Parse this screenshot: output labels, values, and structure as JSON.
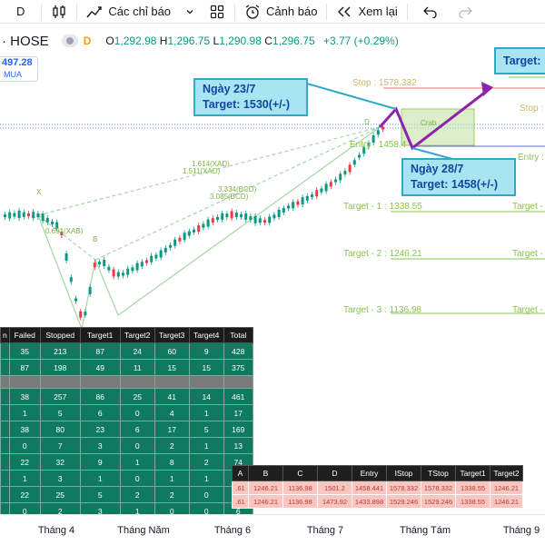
{
  "toolbar": {
    "interval": "D",
    "indicators_label": "Các chỉ báo",
    "alerts_label": "Cảnh báo",
    "replay_label": "Xem lại"
  },
  "symbol": {
    "name": "· HOSE",
    "timeframe_badge": "D",
    "open_label": "O",
    "open": "1,292.98",
    "high_label": "H",
    "high": "1,296.75",
    "low_label": "L",
    "low": "1,290.98",
    "close_label": "C",
    "close": "1,296.75",
    "change": "+3.77 (+0.29%)"
  },
  "price_box": {
    "price": "497.28",
    "side": "MUA"
  },
  "chart": {
    "pattern_labels": {
      "x": "X",
      "b": "B",
      "d": "D",
      "crab": "Crab",
      "ratio_xab": "0.691(XAB)",
      "ratio_ad1": "1.614(XAD)",
      "ratio_ad2": "1.511(XAD)",
      "ratio_bcd1": "3.334(BCD)",
      "ratio_bcd2": "3.085(BCD)"
    },
    "levels": {
      "stop": "Stop : 1578.332",
      "stop_right": "Stop :",
      "entry": "Entry : 1458.4",
      "entry_right": "Entry :",
      "target1": "Target - 1 : 1338.55",
      "target1_right": "Target -",
      "target2": "Target - 2 : 1246.21",
      "target2_right": "Target -",
      "target3": "Target - 3 : 1136.98",
      "target3_right": "Target -"
    },
    "accent_arrow": "#8e24aa",
    "stop_line": "#e57373",
    "target_line": "#8bc34a",
    "up_candle": "#089981",
    "down_candle": "#f23645"
  },
  "callouts": {
    "c1_line1": "Ngày 23/7",
    "c1_line2": "Target: 1530(+/-)",
    "c2_line1": "Ngày 28/7",
    "c2_line2": "Target: 1458(+/-)",
    "c3": "Target:"
  },
  "stats_table": {
    "headers": [
      "n",
      "Failed",
      "Stopped",
      "Target1",
      "Target2",
      "Target3",
      "Target4",
      "Total"
    ],
    "rows": [
      [
        "",
        "35",
        "213",
        "87",
        "24",
        "60",
        "9",
        "428"
      ],
      [
        "",
        "87",
        "198",
        "49",
        "11",
        "15",
        "15",
        "375"
      ],
      [
        "",
        "",
        "",
        "",
        "",
        "",
        "",
        ""
      ],
      [
        "",
        "38",
        "257",
        "86",
        "25",
        "41",
        "14",
        "461"
      ],
      [
        "",
        "1",
        "5",
        "6",
        "0",
        "4",
        "1",
        "17"
      ],
      [
        "",
        "38",
        "80",
        "23",
        "6",
        "17",
        "5",
        "169"
      ],
      [
        "",
        "0",
        "7",
        "3",
        "0",
        "2",
        "1",
        "13"
      ],
      [
        "",
        "22",
        "32",
        "9",
        "1",
        "8",
        "2",
        "74"
      ],
      [
        "",
        "1",
        "3",
        "1",
        "0",
        "1",
        "1",
        "7"
      ],
      [
        "",
        "22",
        "25",
        "5",
        "2",
        "2",
        "0",
        "56"
      ],
      [
        "",
        "0",
        "2",
        "3",
        "1",
        "0",
        "0",
        "6"
      ]
    ]
  },
  "levels_table": {
    "headers": [
      "A",
      "B",
      "C",
      "D",
      "Entry",
      "IStop",
      "TStop",
      "Target1",
      "Target2"
    ],
    "rows": [
      [
        ".61",
        "1246.21",
        "1136.98",
        "1501.2",
        "1458.441",
        "1578.332",
        "1578.332",
        "1338.55",
        "1246.21"
      ],
      [
        ".61",
        "1246.21",
        "1136.98",
        "1473.92",
        "1433.898",
        "1529.246",
        "1529.246",
        "1338.55",
        "1246.21"
      ]
    ]
  },
  "time_axis": {
    "labels": [
      "Tháng 4",
      "Tháng Năm",
      "Tháng 6",
      "Tháng 7",
      "Tháng Tám",
      "Tháng 9"
    ]
  }
}
